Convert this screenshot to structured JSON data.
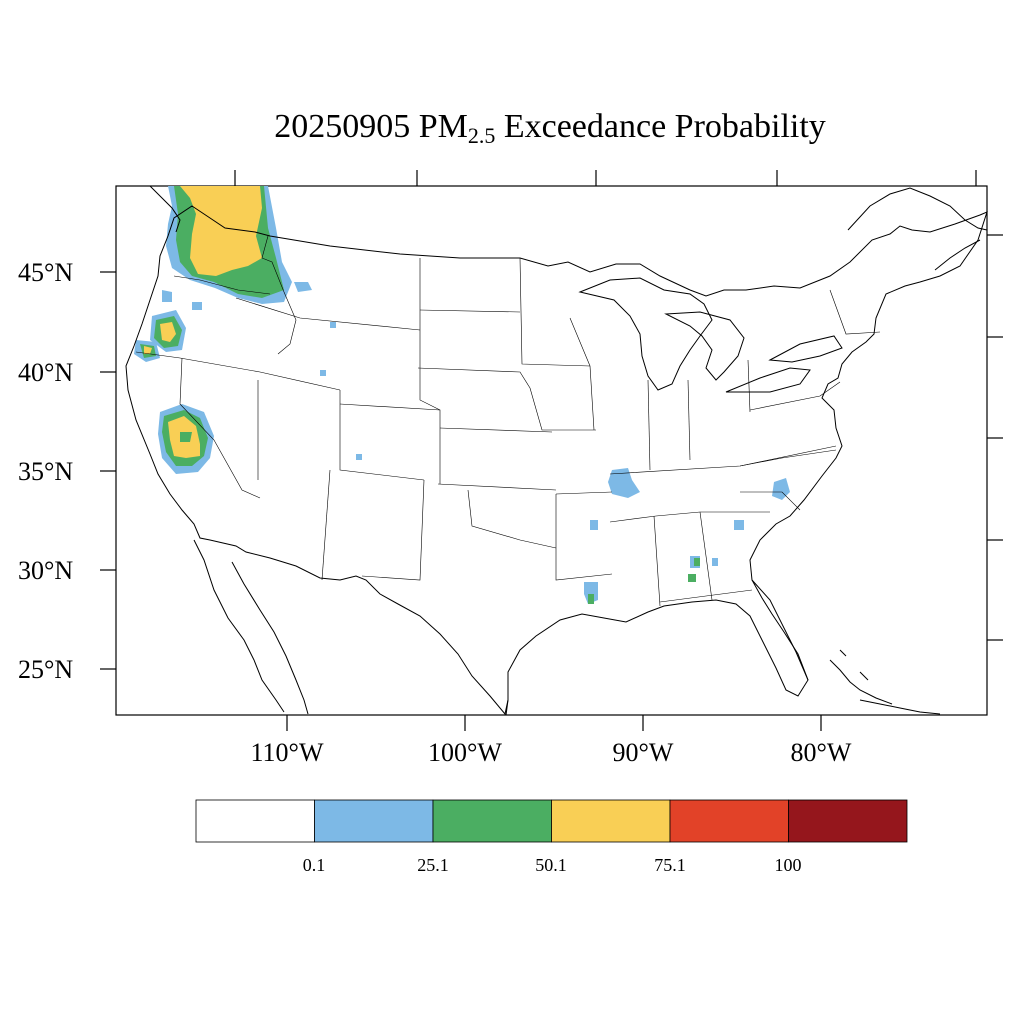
{
  "title": {
    "date": "20250905",
    "pollutant": "PM",
    "pollutant_sub": "2.5",
    "suffix": "Exceedance Probability"
  },
  "latitude_labels": [
    "45°N",
    "40°N",
    "35°N",
    "30°N",
    "25°N"
  ],
  "longitude_labels": [
    "110°W",
    "100°W",
    "90°W",
    "80°W"
  ],
  "colorbar": {
    "colors": [
      "#ffffff",
      "#7db9e6",
      "#4bae62",
      "#f9cf55",
      "#e24228",
      "#95161c"
    ],
    "labels": [
      "0.1",
      "25.1",
      "50.1",
      "75.1",
      "100"
    ]
  },
  "map": {
    "region": "Contiguous United States",
    "projection": "Lambert conformal",
    "extent_lon": [
      -119,
      -69
    ],
    "extent_lat": [
      23,
      50
    ]
  }
}
